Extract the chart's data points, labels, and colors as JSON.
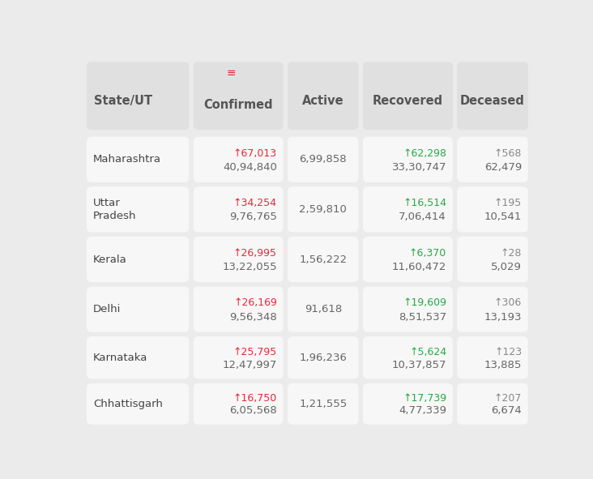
{
  "header_row": [
    "State/UT",
    "Confirmed",
    "Active",
    "Recovered",
    "Deceased"
  ],
  "rows": [
    {
      "state": "Maharashtra",
      "confirmed_delta": "↑67,013",
      "confirmed_total": "40,94,840",
      "active_total": "6,99,858",
      "recovered_delta": "↑62,298",
      "recovered_total": "33,30,747",
      "deceased_delta": "↑568",
      "deceased_total": "62,479",
      "confirmed_delta_color": "#e8263a",
      "recovered_delta_color": "#28a745",
      "deceased_delta_color": "#888888"
    },
    {
      "state": "Uttar\nPradesh",
      "confirmed_delta": "↑34,254",
      "confirmed_total": "9,76,765",
      "active_total": "2,59,810",
      "recovered_delta": "↑16,514",
      "recovered_total": "7,06,414",
      "deceased_delta": "↑195",
      "deceased_total": "10,541",
      "confirmed_delta_color": "#e8263a",
      "recovered_delta_color": "#28a745",
      "deceased_delta_color": "#888888"
    },
    {
      "state": "Kerala",
      "confirmed_delta": "↑26,995",
      "confirmed_total": "13,22,055",
      "active_total": "1,56,222",
      "recovered_delta": "↑6,370",
      "recovered_total": "11,60,472",
      "deceased_delta": "↑28",
      "deceased_total": "5,029",
      "confirmed_delta_color": "#e8263a",
      "recovered_delta_color": "#28a745",
      "deceased_delta_color": "#888888"
    },
    {
      "state": "Delhi",
      "confirmed_delta": "↑26,169",
      "confirmed_total": "9,56,348",
      "active_total": "91,618",
      "recovered_delta": "↑19,609",
      "recovered_total": "8,51,537",
      "deceased_delta": "↑306",
      "deceased_total": "13,193",
      "confirmed_delta_color": "#e8263a",
      "recovered_delta_color": "#28a745",
      "deceased_delta_color": "#888888"
    },
    {
      "state": "Karnataka",
      "confirmed_delta": "↑25,795",
      "confirmed_total": "12,47,997",
      "active_total": "1,96,236",
      "recovered_delta": "↑5,624",
      "recovered_total": "10,37,857",
      "deceased_delta": "↑123",
      "deceased_total": "13,885",
      "confirmed_delta_color": "#e8263a",
      "recovered_delta_color": "#28a745",
      "deceased_delta_color": "#888888"
    },
    {
      "state": "Chhattisgarh",
      "confirmed_delta": "↑16,750",
      "confirmed_total": "6,05,568",
      "active_total": "1,21,555",
      "recovered_delta": "↑17,739",
      "recovered_total": "4,77,339",
      "deceased_delta": "↑207",
      "deceased_total": "6,674",
      "confirmed_delta_color": "#e8263a",
      "recovered_delta_color": "#28a745",
      "deceased_delta_color": "#888888"
    }
  ],
  "bg_color": "#ebebeb",
  "cell_bg_light": "#f7f7f7",
  "cell_bg_dark": "#efefef",
  "header_bg": "#e0e0e0",
  "total_text_color": "#666666",
  "state_text_color": "#444444",
  "header_text_color": "#555555",
  "filter_color": "#e8263a"
}
